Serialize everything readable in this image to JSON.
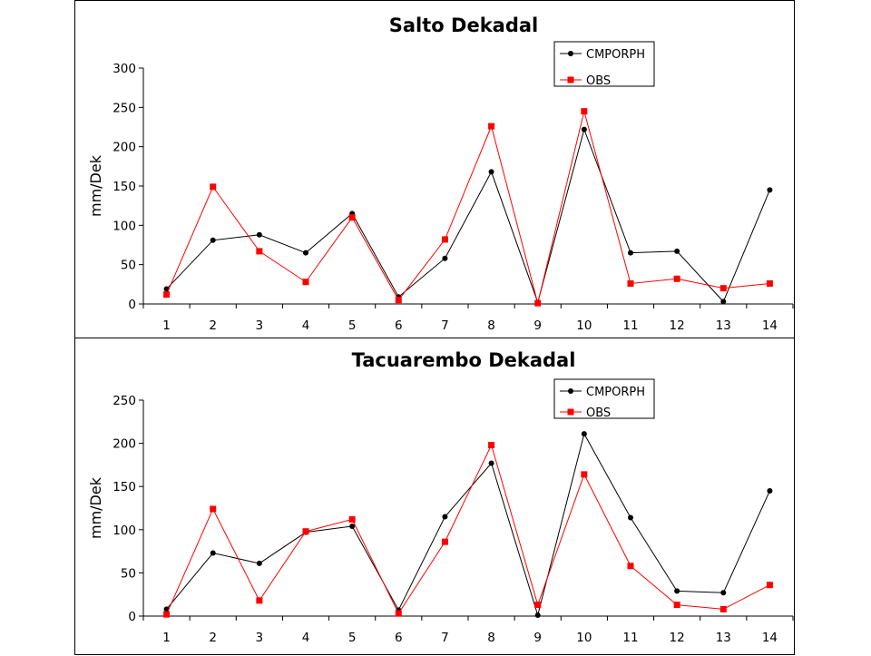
{
  "chart_data": [
    {
      "type": "line",
      "title": "Salto Dekadal",
      "ylabel": "mm/Dek",
      "xlabel": "",
      "categories": [
        "1",
        "2",
        "3",
        "4",
        "5",
        "6",
        "7",
        "8",
        "9",
        "10",
        "11",
        "12",
        "13",
        "14"
      ],
      "ylim": [
        0,
        300
      ],
      "yticks": [
        0,
        50,
        100,
        150,
        200,
        250,
        300
      ],
      "legend_position": "top-right",
      "grid": false,
      "series": [
        {
          "name": "CMPORPH",
          "color": "#000000",
          "marker": "circle",
          "values": [
            19,
            81,
            88,
            65,
            115,
            9,
            58,
            168,
            2,
            222,
            65,
            67,
            3,
            145
          ]
        },
        {
          "name": "OBS",
          "color": "#ff0000",
          "marker": "square",
          "values": [
            12,
            149,
            67,
            28,
            110,
            5,
            82,
            226,
            1,
            245,
            26,
            32,
            20,
            26
          ]
        }
      ]
    },
    {
      "type": "line",
      "title": "Tacuarembo Dekadal",
      "ylabel": "mm/Dek",
      "xlabel": "",
      "categories": [
        "1",
        "2",
        "3",
        "4",
        "5",
        "6",
        "7",
        "8",
        "9",
        "10",
        "11",
        "12",
        "13",
        "14"
      ],
      "ylim": [
        0,
        250
      ],
      "yticks": [
        0,
        50,
        100,
        150,
        200,
        250
      ],
      "legend_position": "top-right",
      "grid": false,
      "series": [
        {
          "name": "CMPORPH",
          "color": "#000000",
          "marker": "circle",
          "values": [
            8,
            73,
            61,
            97,
            104,
            7,
            115,
            177,
            1,
            211,
            114,
            29,
            27,
            145
          ]
        },
        {
          "name": "OBS",
          "color": "#ff0000",
          "marker": "square",
          "values": [
            2,
            124,
            18,
            98,
            112,
            3,
            86,
            198,
            13,
            164,
            58,
            13,
            8,
            36
          ]
        }
      ]
    }
  ]
}
